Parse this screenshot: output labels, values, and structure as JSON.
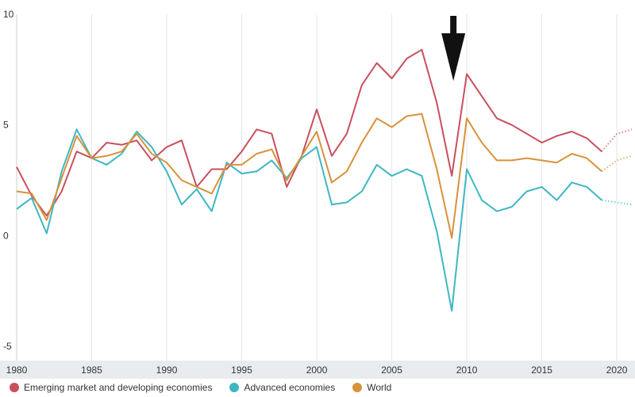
{
  "chart_data": {
    "type": "line",
    "ylim": [
      -5,
      10
    ],
    "xlim": [
      1980,
      2021
    ],
    "y_ticks": [
      "10",
      "5",
      "0",
      "-5"
    ],
    "x_ticks": [
      "1980",
      "1985",
      "1990",
      "1995",
      "2000",
      "2005",
      "2010",
      "2015",
      "2020"
    ],
    "grid": "vertical",
    "legend_position": "bottom",
    "annotation": "arrow",
    "annotation_x": 2009,
    "projection_years": [
      2019,
      2020,
      2021
    ],
    "x": [
      1980,
      1981,
      1982,
      1983,
      1984,
      1985,
      1986,
      1987,
      1988,
      1989,
      1990,
      1991,
      1992,
      1993,
      1994,
      1995,
      1996,
      1997,
      1998,
      1999,
      2000,
      2001,
      2002,
      2003,
      2004,
      2005,
      2006,
      2007,
      2008,
      2009,
      2010,
      2011,
      2012,
      2013,
      2014,
      2015,
      2016,
      2017,
      2018,
      2019
    ],
    "series": [
      {
        "name": "Emerging market and developing economies",
        "color": "#c8505e",
        "values": [
          3.1,
          1.8,
          0.9,
          2.0,
          3.8,
          3.5,
          4.2,
          4.1,
          4.3,
          3.4,
          4.0,
          4.3,
          2.2,
          3.0,
          3.0,
          3.8,
          4.8,
          4.6,
          2.2,
          3.6,
          5.7,
          3.6,
          4.6,
          6.8,
          7.8,
          7.1,
          8.0,
          8.4,
          6.0,
          2.7,
          7.3,
          6.3,
          5.3,
          5.0,
          4.6,
          4.2,
          4.5,
          4.7,
          4.4,
          3.8
        ],
        "projection": [
          3.8,
          4.6,
          4.8
        ]
      },
      {
        "name": "Advanced economies",
        "color": "#3fb6c3",
        "values": [
          1.2,
          1.7,
          0.1,
          2.9,
          4.8,
          3.5,
          3.2,
          3.7,
          4.7,
          4.0,
          2.9,
          1.4,
          2.1,
          1.1,
          3.3,
          2.8,
          2.9,
          3.4,
          2.6,
          3.5,
          4.0,
          1.4,
          1.5,
          2.0,
          3.2,
          2.7,
          3.0,
          2.7,
          0.2,
          -3.4,
          3.0,
          1.6,
          1.1,
          1.3,
          2.0,
          2.2,
          1.6,
          2.4,
          2.2,
          1.6
        ],
        "projection": [
          1.6,
          1.5,
          1.4
        ]
      },
      {
        "name": "World",
        "color": "#d8923a",
        "values": [
          2.0,
          1.9,
          0.7,
          2.6,
          4.5,
          3.5,
          3.6,
          3.8,
          4.6,
          3.7,
          3.3,
          2.5,
          2.2,
          1.9,
          3.2,
          3.2,
          3.7,
          3.9,
          2.5,
          3.6,
          4.7,
          2.4,
          2.9,
          4.2,
          5.3,
          4.9,
          5.4,
          5.5,
          3.0,
          -0.1,
          5.3,
          4.2,
          3.4,
          3.4,
          3.5,
          3.4,
          3.3,
          3.7,
          3.5,
          2.9
        ],
        "projection": [
          2.9,
          3.4,
          3.6
        ]
      }
    ]
  }
}
